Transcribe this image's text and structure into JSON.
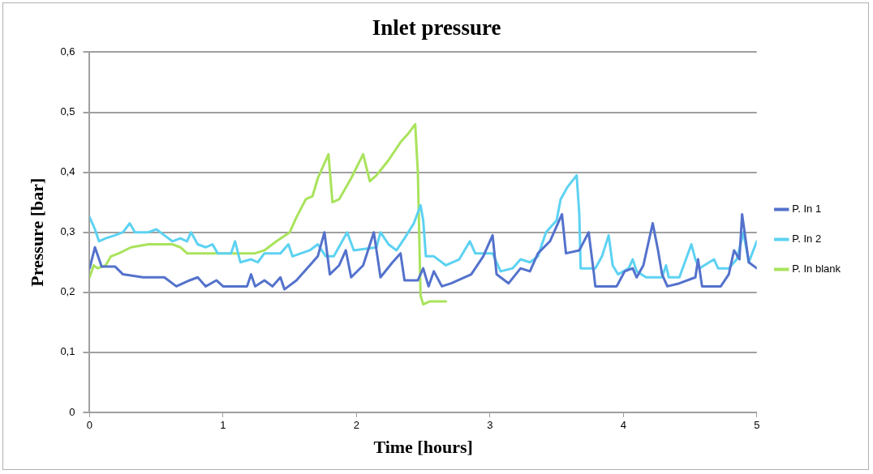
{
  "chart_data": {
    "type": "line",
    "title": "Inlet pressure",
    "xlabel": "Time [hours]",
    "ylabel": "Pressure [bar]",
    "xlim": [
      0,
      5
    ],
    "xticks": [
      0,
      1,
      2,
      3,
      4,
      5
    ],
    "ylim": [
      0,
      0.6
    ],
    "yticks": [
      0,
      {
        "value": 0.1,
        "label": "0,1"
      },
      {
        "value": 0.2,
        "label": "0,2"
      },
      {
        "value": 0.3,
        "label": "0,3"
      },
      {
        "value": 0.4,
        "label": "0,4"
      },
      {
        "value": 0.5,
        "label": "0,5"
      },
      {
        "value": 0.6,
        "label": "0,6"
      }
    ],
    "grid": "y",
    "legend": "right",
    "marker": "none",
    "line_style": "solid",
    "series": [
      {
        "name": "P. In 1",
        "color": "#5472cc",
        "x": [
          0,
          0.04,
          0.09,
          0.19,
          0.25,
          0.4,
          0.56,
          0.65,
          0.75,
          0.81,
          0.87,
          0.95,
          1,
          1.18,
          1.21,
          1.24,
          1.31,
          1.37,
          1.43,
          1.46,
          1.55,
          1.65,
          1.71,
          1.76,
          1.8,
          1.87,
          1.92,
          1.96,
          2.05,
          2.13,
          2.18,
          2.27,
          2.33,
          2.36,
          2.46,
          2.5,
          2.54,
          2.58,
          2.64,
          2.71,
          2.86,
          2.95,
          3.02,
          3.05,
          3.14,
          3.23,
          3.3,
          3.36,
          3.45,
          3.54,
          3.57,
          3.67,
          3.74,
          3.78,
          3.79,
          3.95,
          4.01,
          4.07,
          4.1,
          4.15,
          4.22,
          4.26,
          4.29,
          4.33,
          4.42,
          4.54,
          4.56,
          4.59,
          4.73,
          4.79,
          4.83,
          4.87,
          4.89,
          4.94,
          5
        ],
        "values": [
          0.24,
          0.275,
          0.243,
          0.243,
          0.23,
          0.225,
          0.225,
          0.21,
          0.22,
          0.225,
          0.21,
          0.22,
          0.21,
          0.21,
          0.23,
          0.21,
          0.22,
          0.21,
          0.225,
          0.205,
          0.22,
          0.245,
          0.26,
          0.3,
          0.23,
          0.245,
          0.27,
          0.225,
          0.245,
          0.3,
          0.225,
          0.25,
          0.265,
          0.22,
          0.22,
          0.24,
          0.21,
          0.235,
          0.21,
          0.215,
          0.23,
          0.26,
          0.295,
          0.23,
          0.215,
          0.24,
          0.235,
          0.265,
          0.285,
          0.33,
          0.265,
          0.27,
          0.3,
          0.23,
          0.21,
          0.21,
          0.235,
          0.24,
          0.225,
          0.245,
          0.315,
          0.27,
          0.23,
          0.21,
          0.215,
          0.225,
          0.255,
          0.21,
          0.21,
          0.23,
          0.27,
          0.255,
          0.33,
          0.25,
          0.24
        ]
      },
      {
        "name": "P. In 2",
        "color": "#5dd2f2",
        "x": [
          0,
          0.04,
          0.07,
          0.12,
          0.19,
          0.25,
          0.3,
          0.34,
          0.44,
          0.5,
          0.56,
          0.62,
          0.68,
          0.73,
          0.76,
          0.81,
          0.87,
          0.92,
          0.96,
          1.06,
          1.09,
          1.13,
          1.21,
          1.26,
          1.31,
          1.43,
          1.49,
          1.52,
          1.65,
          1.71,
          1.77,
          1.83,
          1.93,
          1.98,
          2.15,
          2.18,
          2.24,
          2.3,
          2.36,
          2.43,
          2.48,
          2.5,
          2.52,
          2.58,
          2.67,
          2.77,
          2.85,
          2.89,
          3.02,
          3.08,
          3.17,
          3.23,
          3.3,
          3.36,
          3.42,
          3.5,
          3.53,
          3.58,
          3.65,
          3.67,
          3.68,
          3.79,
          3.84,
          3.89,
          3.92,
          3.96,
          4.04,
          4.07,
          4.1,
          4.17,
          4.29,
          4.32,
          4.34,
          4.42,
          4.51,
          4.54,
          4.57,
          4.68,
          4.71,
          4.79,
          4.85,
          4.9,
          4.94,
          5
        ],
        "values": [
          0.325,
          0.305,
          0.285,
          0.29,
          0.295,
          0.3,
          0.315,
          0.3,
          0.3,
          0.305,
          0.295,
          0.285,
          0.29,
          0.285,
          0.3,
          0.28,
          0.275,
          0.28,
          0.265,
          0.265,
          0.285,
          0.25,
          0.255,
          0.25,
          0.265,
          0.265,
          0.28,
          0.26,
          0.27,
          0.28,
          0.26,
          0.26,
          0.3,
          0.27,
          0.275,
          0.3,
          0.28,
          0.27,
          0.29,
          0.315,
          0.345,
          0.32,
          0.26,
          0.26,
          0.245,
          0.255,
          0.285,
          0.265,
          0.265,
          0.235,
          0.24,
          0.255,
          0.25,
          0.26,
          0.3,
          0.32,
          0.355,
          0.375,
          0.395,
          0.33,
          0.24,
          0.24,
          0.26,
          0.295,
          0.245,
          0.23,
          0.24,
          0.255,
          0.235,
          0.225,
          0.225,
          0.245,
          0.225,
          0.225,
          0.28,
          0.255,
          0.24,
          0.255,
          0.24,
          0.24,
          0.255,
          0.3,
          0.25,
          0.285
        ]
      },
      {
        "name": "P. In blank",
        "color": "#a9e35c",
        "x": [
          0,
          0.03,
          0.06,
          0.12,
          0.16,
          0.22,
          0.31,
          0.44,
          0.62,
          0.68,
          0.73,
          0.96,
          1.24,
          1.31,
          1.4,
          1.5,
          1.55,
          1.62,
          1.67,
          1.71,
          1.79,
          1.82,
          1.87,
          1.96,
          2.05,
          2.1,
          2.15,
          2.24,
          2.33,
          2.39,
          2.44,
          2.46,
          2.48,
          2.5,
          2.55,
          2.67
        ],
        "values": [
          0.225,
          0.245,
          0.24,
          0.245,
          0.26,
          0.265,
          0.275,
          0.28,
          0.28,
          0.275,
          0.265,
          0.265,
          0.265,
          0.27,
          0.285,
          0.3,
          0.325,
          0.355,
          0.36,
          0.39,
          0.43,
          0.35,
          0.355,
          0.39,
          0.43,
          0.385,
          0.395,
          0.42,
          0.45,
          0.465,
          0.48,
          0.4,
          0.195,
          0.18,
          0.185,
          0.185
        ]
      }
    ]
  }
}
